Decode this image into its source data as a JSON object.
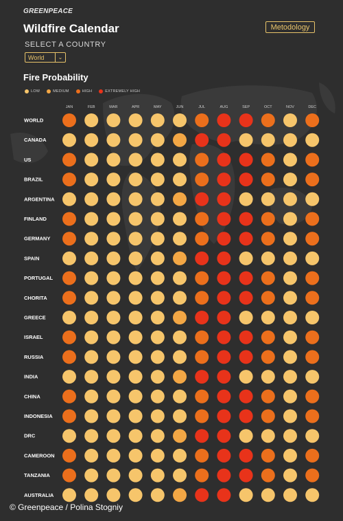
{
  "brand": "GREENPEACE",
  "title": "Wildfire Calendar",
  "methodology_label": "Metodology",
  "select_label": "SELECT A COUNTRY",
  "select_value": "World",
  "section_title": "Fire Probability",
  "credit": "© Greenpeace / Polina Stogniy",
  "chart_data": {
    "type": "heatmap",
    "title": "Fire Probability",
    "legend_placement": "top-left",
    "levels": [
      {
        "key": "LOW",
        "label": "LOW",
        "color": "#f6c56b"
      },
      {
        "key": "MEDIUM",
        "label": "MEDIUM",
        "color": "#f3a745"
      },
      {
        "key": "HIGH",
        "label": "HIGH",
        "color": "#ec6f1c"
      },
      {
        "key": "EXTREMELY HIGH",
        "label": "EXTREMELY HIGH",
        "color": "#e8331a"
      }
    ],
    "months": [
      "JAN",
      "FEB",
      "MAR",
      "APR",
      "MAY",
      "JUN",
      "JUL",
      "AUG",
      "SEP",
      "OCT",
      "NOV",
      "DEC"
    ],
    "countries": [
      "WORLD",
      "CANADA",
      "US",
      "BRAZIL",
      "ARGENTINA",
      "FINLAND",
      "GERMANY",
      "SPAIN",
      "PORTUGAL",
      "CHORITA",
      "GREECE",
      "ISRAEL",
      "RUSSIA",
      "INDIA",
      "CHINA",
      "INDONESIA",
      "DRC",
      "CAMEROON",
      "TANZANIA",
      "AUSTRALIA"
    ],
    "values": [
      [
        2,
        0,
        0,
        0,
        0,
        0,
        2,
        3,
        3,
        2,
        0,
        2
      ],
      [
        0,
        0,
        0,
        0,
        0,
        1,
        3,
        3,
        0,
        0,
        0,
        0
      ],
      [
        2,
        0,
        0,
        0,
        0,
        0,
        2,
        3,
        3,
        2,
        0,
        2
      ],
      [
        2,
        0,
        0,
        0,
        0,
        0,
        2,
        3,
        3,
        2,
        0,
        2
      ],
      [
        0,
        0,
        0,
        0,
        0,
        1,
        3,
        3,
        0,
        0,
        0,
        0
      ],
      [
        2,
        0,
        0,
        0,
        0,
        0,
        2,
        3,
        3,
        2,
        0,
        2
      ],
      [
        2,
        0,
        0,
        0,
        0,
        0,
        2,
        3,
        3,
        2,
        0,
        2
      ],
      [
        0,
        0,
        0,
        0,
        0,
        1,
        3,
        3,
        0,
        0,
        0,
        0
      ],
      [
        2,
        0,
        0,
        0,
        0,
        0,
        2,
        3,
        3,
        2,
        0,
        2
      ],
      [
        2,
        0,
        0,
        0,
        0,
        0,
        2,
        3,
        3,
        2,
        0,
        2
      ],
      [
        0,
        0,
        0,
        0,
        0,
        1,
        3,
        3,
        0,
        0,
        0,
        0
      ],
      [
        2,
        0,
        0,
        0,
        0,
        0,
        2,
        3,
        3,
        2,
        0,
        2
      ],
      [
        2,
        0,
        0,
        0,
        0,
        0,
        2,
        3,
        3,
        2,
        0,
        2
      ],
      [
        0,
        0,
        0,
        0,
        0,
        1,
        3,
        3,
        0,
        0,
        0,
        0
      ],
      [
        2,
        0,
        0,
        0,
        0,
        0,
        2,
        3,
        3,
        2,
        0,
        2
      ],
      [
        2,
        0,
        0,
        0,
        0,
        0,
        2,
        3,
        3,
        2,
        0,
        2
      ],
      [
        0,
        0,
        0,
        0,
        0,
        1,
        3,
        3,
        0,
        0,
        0,
        0
      ],
      [
        2,
        0,
        0,
        0,
        0,
        0,
        2,
        3,
        3,
        2,
        0,
        2
      ],
      [
        2,
        0,
        0,
        0,
        0,
        0,
        2,
        3,
        3,
        2,
        0,
        2
      ],
      [
        0,
        0,
        0,
        0,
        0,
        1,
        3,
        3,
        0,
        0,
        0,
        0
      ]
    ]
  }
}
